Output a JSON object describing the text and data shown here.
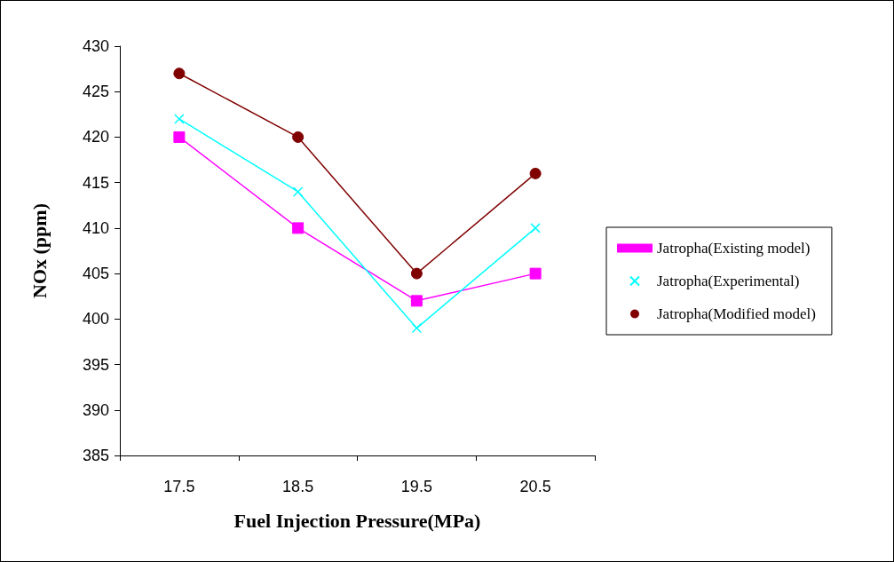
{
  "chart_data": {
    "type": "line",
    "xlabel": "Fuel Injection Pressure(MPa)",
    "ylabel": "NOx (ppm)",
    "categories": [
      "17.5",
      "18.5",
      "19.5",
      "20.5"
    ],
    "series": [
      {
        "name": "Jatropha(Existing model)",
        "color": "#ff00ff",
        "marker": "square",
        "values": [
          420,
          410,
          402,
          405
        ]
      },
      {
        "name": "Jatropha(Experimental)",
        "color": "#00ffff",
        "marker": "cross",
        "values": [
          422,
          414,
          399,
          410
        ]
      },
      {
        "name": "Jatropha(Modified model)",
        "color": "#800000",
        "marker": "circle",
        "values": [
          427,
          420,
          405,
          416
        ]
      }
    ],
    "ylim": [
      385,
      430
    ],
    "yticks": [
      385,
      390,
      395,
      400,
      405,
      410,
      415,
      420,
      425,
      430
    ],
    "grid": false,
    "legend": "right",
    "line_style": "solid"
  }
}
